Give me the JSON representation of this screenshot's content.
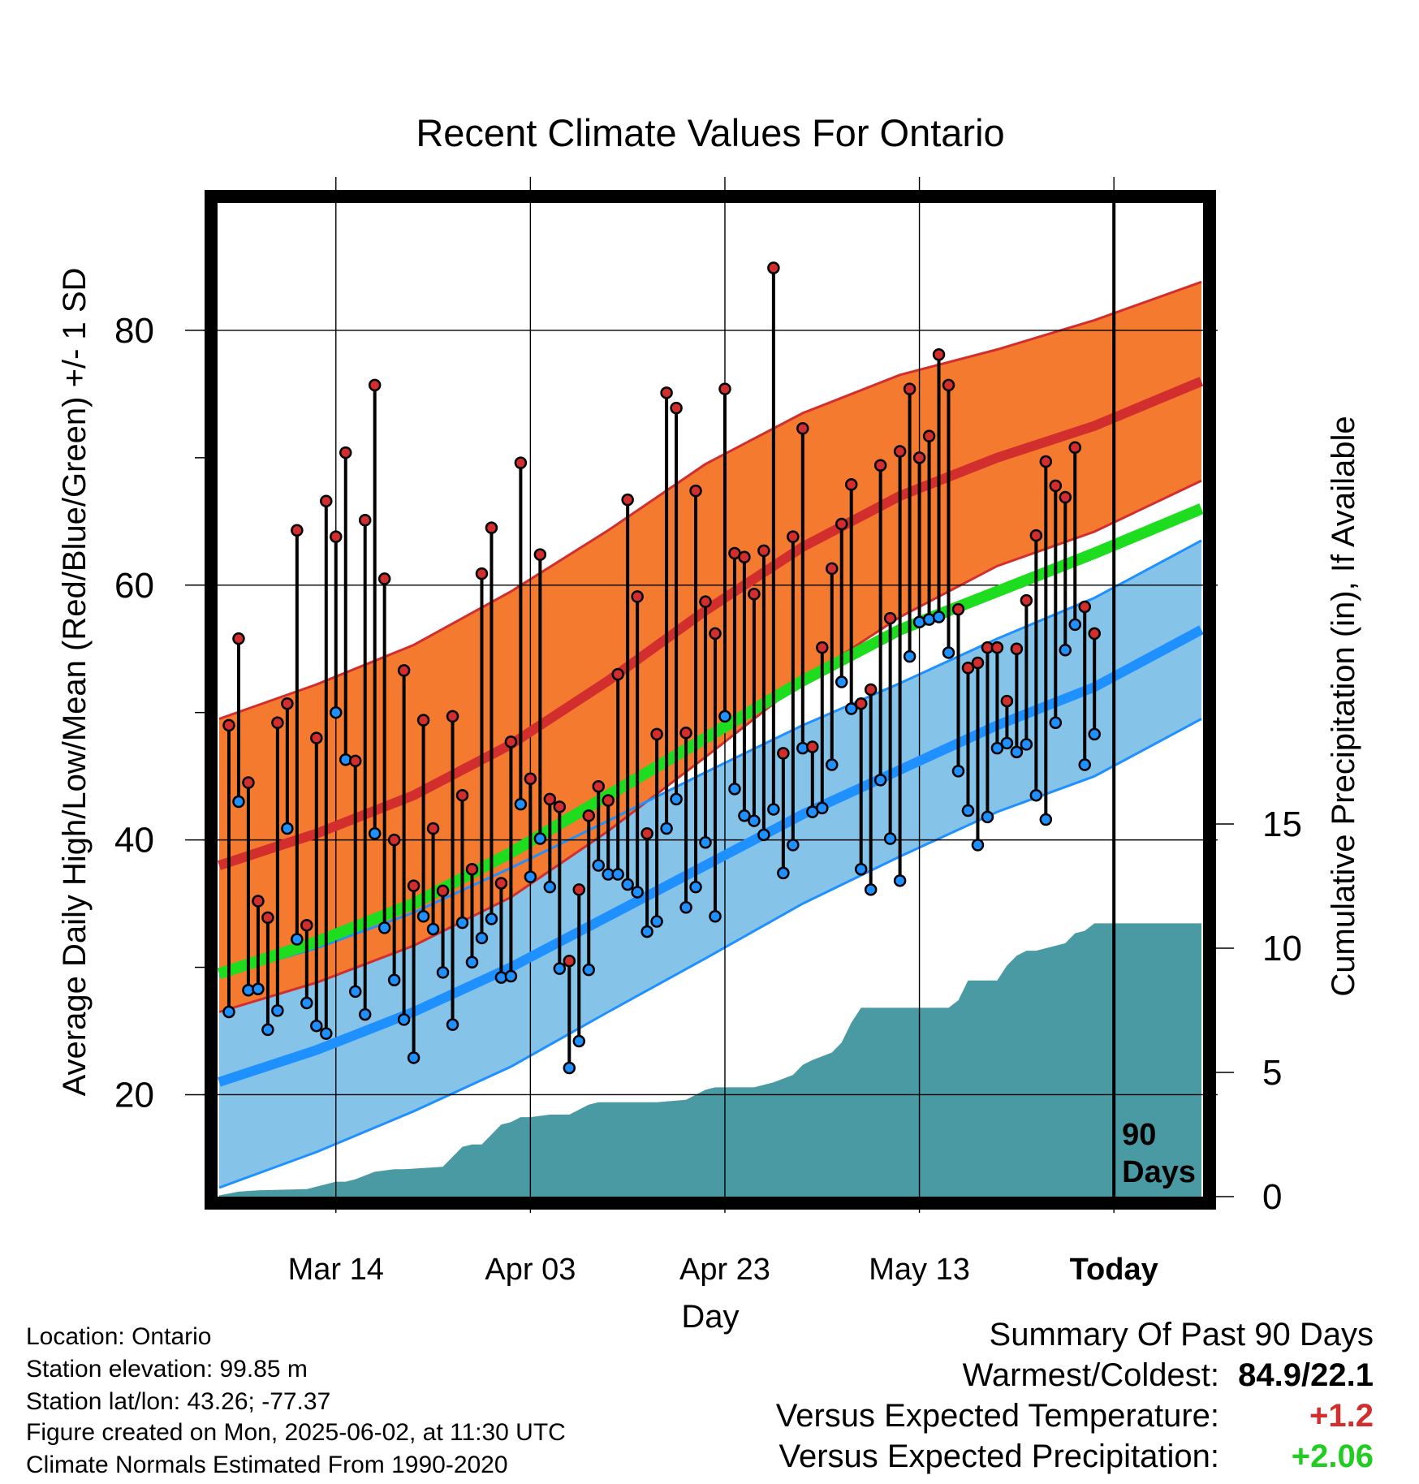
{
  "chart_data": {
    "type": "line",
    "title": "Recent Climate Values For Ontario",
    "xlabel": "Day",
    "ylabel": "Average Daily High/Low/Mean (Red/Blue/Green) +/- 1 SD",
    "y2label": "Cumulative Precipitation (in), If Available",
    "ylim": [
      12,
      90
    ],
    "y2lim": [
      0,
      40
    ],
    "xlim": [
      "2025-03-02",
      "2025-06-11"
    ],
    "x_ticks": [
      "Mar 14",
      "Apr 03",
      "Apr 23",
      "May 13",
      "Today"
    ],
    "y_ticks": [
      "20",
      "40",
      "60",
      "80"
    ],
    "y2_ticks": [
      "0",
      "5",
      "10",
      "15"
    ],
    "today": "2025-06-02",
    "today_label": "90 Days",
    "grid": true,
    "colors": {
      "high_band": "#f47a30",
      "high_mean": "#d22e2e",
      "low_band": "#85c3e8",
      "low_mean": "#1e90ff",
      "mean_line": "#1edc1e",
      "precip": "#4a9aa4",
      "obs_high_dot": "#d22e2e",
      "obs_low_dot": "#1e90ff",
      "summary_temp": "#d22e2e",
      "summary_precip": "#22cc22"
    },
    "normals": {
      "dates": [
        "2025-03-02",
        "2025-03-12",
        "2025-03-22",
        "2025-04-01",
        "2025-04-11",
        "2025-04-21",
        "2025-05-01",
        "2025-05-11",
        "2025-05-21",
        "2025-05-31",
        "2025-06-11"
      ],
      "high_mean": [
        38,
        40.5,
        43.5,
        47.5,
        52.5,
        58,
        63,
        67,
        70,
        72.5,
        76
      ],
      "high_sd": [
        11.5,
        11.7,
        11.8,
        12,
        11.8,
        11.5,
        10.5,
        9.5,
        8.5,
        8.3,
        7.8
      ],
      "low_mean": [
        21,
        23.5,
        26.5,
        30,
        34,
        38,
        42,
        45.5,
        49,
        52,
        56.5
      ],
      "low_sd": [
        8.3,
        8,
        7.8,
        7.8,
        7.5,
        7.3,
        7,
        6.8,
        6.8,
        7,
        7
      ],
      "mean": [
        29.5,
        32,
        35,
        39,
        43.5,
        48,
        52.5,
        56.5,
        59.5,
        62.5,
        66
      ]
    },
    "observed": {
      "dates": [
        "2025-03-03",
        "2025-03-04",
        "2025-03-05",
        "2025-03-06",
        "2025-03-07",
        "2025-03-08",
        "2025-03-09",
        "2025-03-10",
        "2025-03-11",
        "2025-03-12",
        "2025-03-13",
        "2025-03-14",
        "2025-03-15",
        "2025-03-16",
        "2025-03-17",
        "2025-03-18",
        "2025-03-19",
        "2025-03-20",
        "2025-03-21",
        "2025-03-22",
        "2025-03-23",
        "2025-03-24",
        "2025-03-25",
        "2025-03-26",
        "2025-03-27",
        "2025-03-28",
        "2025-03-29",
        "2025-03-30",
        "2025-03-31",
        "2025-04-01",
        "2025-04-02",
        "2025-04-03",
        "2025-04-04",
        "2025-04-05",
        "2025-04-06",
        "2025-04-07",
        "2025-04-08",
        "2025-04-09",
        "2025-04-10",
        "2025-04-11",
        "2025-04-12",
        "2025-04-13",
        "2025-04-14",
        "2025-04-15",
        "2025-04-16",
        "2025-04-17",
        "2025-04-18",
        "2025-04-19",
        "2025-04-20",
        "2025-04-21",
        "2025-04-22",
        "2025-04-23",
        "2025-04-24",
        "2025-04-25",
        "2025-04-26",
        "2025-04-27",
        "2025-04-28",
        "2025-04-29",
        "2025-04-30",
        "2025-05-01",
        "2025-05-02",
        "2025-05-03",
        "2025-05-04",
        "2025-05-05",
        "2025-05-06",
        "2025-05-07",
        "2025-05-08",
        "2025-05-09",
        "2025-05-10",
        "2025-05-11",
        "2025-05-12",
        "2025-05-13",
        "2025-05-14",
        "2025-05-15",
        "2025-05-16",
        "2025-05-17",
        "2025-05-18",
        "2025-05-19",
        "2025-05-20",
        "2025-05-21",
        "2025-05-22",
        "2025-05-23",
        "2025-05-24",
        "2025-05-25",
        "2025-05-26",
        "2025-05-27",
        "2025-05-28",
        "2025-05-29",
        "2025-05-30",
        "2025-05-31"
      ],
      "high": [
        49,
        55.8,
        44.5,
        35.2,
        33.9,
        49.2,
        50.7,
        64.3,
        33.3,
        48.0,
        66.6,
        63.8,
        70.4,
        46.2,
        65.1,
        75.7,
        60.5,
        40.0,
        53.3,
        36.4,
        49.4,
        40.9,
        36.0,
        49.7,
        43.5,
        37.7,
        60.9,
        64.5,
        36.6,
        47.7,
        69.6,
        44.8,
        62.4,
        43.2,
        42.6,
        30.5,
        36.1,
        41.9,
        44.2,
        43.1,
        53.0,
        66.7,
        59.1,
        40.5,
        48.3,
        75.1,
        73.9,
        48.4,
        67.4,
        58.7,
        56.2,
        75.4,
        62.5,
        62.2,
        59.3,
        62.7,
        84.9,
        46.8,
        63.8,
        72.3,
        47.3,
        55.1,
        61.3,
        64.8,
        67.9,
        50.7,
        51.8,
        69.4,
        57.4,
        70.5,
        75.4,
        70.0,
        71.7,
        78.1,
        75.7,
        58.1,
        53.5,
        53.9,
        55.1,
        55.1,
        50.9,
        55.0,
        58.8,
        63.9,
        69.7,
        67.8,
        66.9,
        70.8,
        58.3,
        56.2
      ],
      "low": [
        26.5,
        43.0,
        28.2,
        28.3,
        25.1,
        26.6,
        40.9,
        32.2,
        27.2,
        25.4,
        24.8,
        50.0,
        46.3,
        28.1,
        26.3,
        40.5,
        33.1,
        29.0,
        25.9,
        22.9,
        34.0,
        33.0,
        29.6,
        25.5,
        33.5,
        30.4,
        32.3,
        33.8,
        29.2,
        29.3,
        42.8,
        37.1,
        40.1,
        36.3,
        29.9,
        22.1,
        24.2,
        29.8,
        38.0,
        37.3,
        37.3,
        36.5,
        35.9,
        32.8,
        33.6,
        40.9,
        43.2,
        34.7,
        36.3,
        39.8,
        34.0,
        49.7,
        44.0,
        41.9,
        41.5,
        40.4,
        42.4,
        37.4,
        39.6,
        47.2,
        42.2,
        42.5,
        45.9,
        52.4,
        50.3,
        37.7,
        36.1,
        44.7,
        40.1,
        36.8,
        54.4,
        57.1,
        57.3,
        57.5,
        54.7,
        45.4,
        42.3,
        39.6,
        41.8,
        47.2,
        47.6,
        46.9,
        47.5,
        43.5,
        41.6,
        49.2,
        54.9,
        56.9,
        45.9,
        48.3
      ]
    },
    "precip_cumulative": {
      "dates": [
        "2025-03-02",
        "2025-03-04",
        "2025-03-06",
        "2025-03-11",
        "2025-03-14",
        "2025-03-15",
        "2025-03-16",
        "2025-03-18",
        "2025-03-20",
        "2025-03-21",
        "2025-03-25",
        "2025-03-27",
        "2025-03-28",
        "2025-03-29",
        "2025-03-31",
        "2025-04-01",
        "2025-04-02",
        "2025-04-03",
        "2025-04-05",
        "2025-04-07",
        "2025-04-09",
        "2025-04-10",
        "2025-04-12",
        "2025-04-14",
        "2025-04-16",
        "2025-04-19",
        "2025-04-21",
        "2025-04-22",
        "2025-04-26",
        "2025-04-28",
        "2025-04-30",
        "2025-05-01",
        "2025-05-02",
        "2025-05-04",
        "2025-05-05",
        "2025-05-06",
        "2025-05-07",
        "2025-05-08",
        "2025-05-16",
        "2025-05-17",
        "2025-05-18",
        "2025-05-21",
        "2025-05-22",
        "2025-05-23",
        "2025-05-24",
        "2025-05-25",
        "2025-05-28",
        "2025-05-29",
        "2025-05-30",
        "2025-05-31",
        "2025-06-11"
      ],
      "values": [
        0.05,
        0.2,
        0.25,
        0.3,
        0.6,
        0.6,
        0.7,
        1.0,
        1.1,
        1.1,
        1.2,
        2.0,
        2.1,
        2.1,
        2.9,
        3.0,
        3.2,
        3.2,
        3.3,
        3.3,
        3.7,
        3.8,
        3.8,
        3.8,
        3.8,
        3.9,
        4.3,
        4.4,
        4.4,
        4.6,
        4.9,
        5.3,
        5.5,
        5.8,
        6.2,
        7.0,
        7.6,
        7.6,
        7.6,
        7.9,
        8.7,
        8.7,
        9.3,
        9.7,
        9.9,
        9.9,
        10.2,
        10.6,
        10.7,
        11.0,
        11.0
      ]
    }
  },
  "footer": {
    "location": "Location: Ontario",
    "elevation": "Station elevation: 99.85 m",
    "latlon": "Station lat/lon: 43.26; -77.37",
    "created": "Figure created on Mon, 2025-06-02, at 11:30 UTC",
    "normals": "Climate Normals Estimated From 1990-2020"
  },
  "summary": {
    "title": "Summary Of Past 90 Days",
    "warmest_label": "Warmest/Coldest:",
    "warmest_value": "84.9/22.1",
    "temp_label": "Versus Expected Temperature:",
    "temp_value": "+1.2",
    "precip_label": "Versus Expected Precipitation:",
    "precip_value": "+2.06"
  }
}
